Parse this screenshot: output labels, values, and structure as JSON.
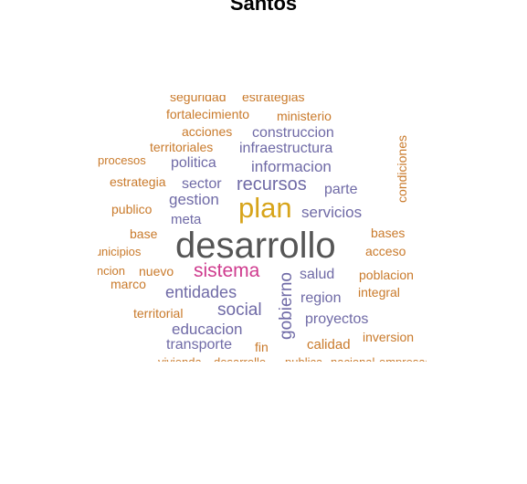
{
  "title": "Santos",
  "colors": {
    "orange": "#c97a2b",
    "purple": "#6f6aa6",
    "gray": "#555555",
    "gold": "#d7a41a",
    "magenta": "#cf3b8e"
  },
  "words": {
    "seguridad": "seguridad",
    "estrategias": "estrategias",
    "fortalecimiento": "fortalecimiento",
    "ministerio": "ministerio",
    "acciones": "acciones",
    "construccion": "construccion",
    "territoriales": "territoriales",
    "infraestructura": "infraestructura",
    "procesos": "procesos",
    "politica": "politica",
    "informacion": "informacion",
    "condiciones": "condiciones",
    "estrategia": "estrategia",
    "sector": "sector",
    "recursos": "recursos",
    "parte": "parte",
    "gestion": "gestion",
    "publico": "publico",
    "plan": "plan",
    "servicios": "servicios",
    "meta": "meta",
    "base": "base",
    "bases": "bases",
    "desarrollo": "desarrollo",
    "municipios": "municipios",
    "acceso": "acceso",
    "funcion": "funcion",
    "nuevo": "nuevo",
    "sistema": "sistema",
    "salud": "salud",
    "poblacion": "poblacion",
    "marco": "marco",
    "gobierno": "gobierno",
    "entidades": "entidades",
    "region": "region",
    "integral": "integral",
    "territorial": "territorial",
    "social": "social",
    "proyectos": "proyectos",
    "educacion": "educacion",
    "inversion": "inversion",
    "transporte": "transporte",
    "fin": "fin",
    "calidad": "calidad",
    "bottom_cut_1": "vivienda",
    "bottom_cut_2": "desarrollo",
    "bottom_cut_3": "publica",
    "bottom_cut_4": "nacional",
    "bottom_cut_5": "empresas"
  }
}
